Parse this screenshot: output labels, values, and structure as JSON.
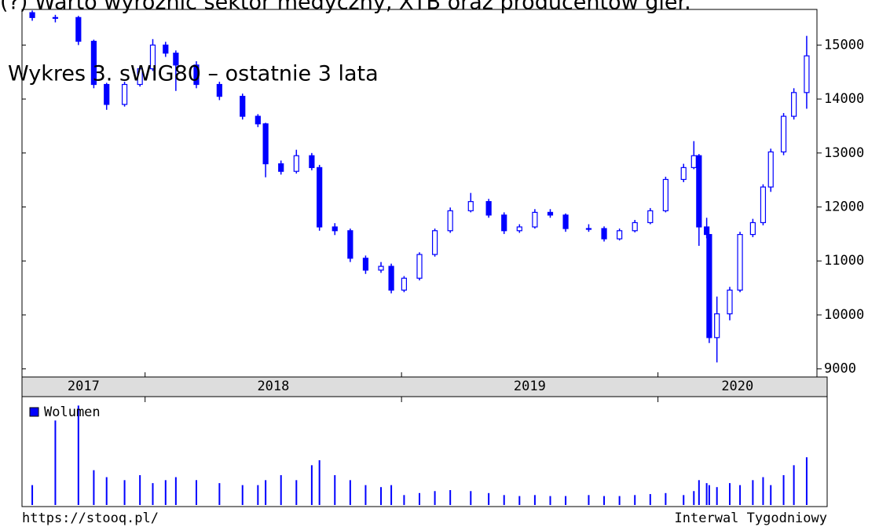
{
  "chart_data": {
    "type": "candlestick",
    "heading": "(?) Warto wyróżnić sektor medyczny, XTB oraz producentów gier.",
    "title": "Wykres 3. sWIG80 – ostatnie 3 lata",
    "color": "#0000ff",
    "x": [
      2017.56,
      2017.65,
      2017.74,
      2017.8,
      2017.85,
      2017.92,
      2017.98,
      2018.03,
      2018.08,
      2018.12,
      2018.2,
      2018.29,
      2018.38,
      2018.44,
      2018.47,
      2018.53,
      2018.59,
      2018.65,
      2018.68,
      2018.74,
      2018.8,
      2018.86,
      2018.92,
      2018.96,
      2019.01,
      2019.07,
      2019.13,
      2019.19,
      2019.27,
      2019.34,
      2019.4,
      2019.46,
      2019.52,
      2019.58,
      2019.64,
      2019.73,
      2019.79,
      2019.85,
      2019.91,
      2019.97,
      2020.03,
      2020.1,
      2020.14,
      2020.16,
      2020.19,
      2020.2,
      2020.23,
      2020.28,
      2020.32,
      2020.37,
      2020.41,
      2020.44,
      2020.49,
      2020.53,
      2020.58
    ],
    "open": [
      15600,
      15510,
      15510,
      15070,
      14270,
      13900,
      14270,
      14560,
      15000,
      14850,
      14630,
      14270,
      14050,
      13680,
      13540,
      12800,
      12660,
      12950,
      12730,
      11630,
      11560,
      11050,
      10830,
      10900,
      10460,
      10680,
      11120,
      11560,
      11930,
      12100,
      11850,
      11560,
      11630,
      11900,
      11850,
      11600,
      11600,
      11410,
      11560,
      11710,
      11930,
      12510,
      12730,
      12950,
      11630,
      11490,
      9580,
      10020,
      10460,
      11490,
      11710,
      12370,
      13020,
      13680,
      14120
    ],
    "high": [
      15640,
      15560,
      15540,
      15100,
      14300,
      14320,
      14620,
      15110,
      15060,
      14900,
      14700,
      14320,
      14100,
      13720,
      13560,
      12860,
      13060,
      13000,
      12780,
      11700,
      11600,
      11100,
      10980,
      10950,
      10720,
      11160,
      11600,
      11990,
      12260,
      12150,
      11900,
      11680,
      11960,
      11960,
      11880,
      11680,
      11640,
      11600,
      11760,
      11980,
      12560,
      12800,
      13220,
      12980,
      11800,
      11490,
      10340,
      10520,
      11540,
      11780,
      12420,
      13080,
      13740,
      14200,
      15170
    ],
    "low": [
      15450,
      15420,
      15000,
      14200,
      13800,
      13860,
      14230,
      14520,
      14780,
      14150,
      14200,
      13980,
      13620,
      13480,
      12550,
      12600,
      12620,
      12680,
      11560,
      11480,
      10980,
      10760,
      10780,
      10400,
      10420,
      10640,
      11080,
      11520,
      11900,
      11800,
      11500,
      11520,
      11600,
      11800,
      11540,
      11540,
      11360,
      11380,
      11530,
      11680,
      11900,
      12460,
      12700,
      11280,
      11420,
      9480,
      9120,
      9900,
      10420,
      11440,
      11660,
      12280,
      12960,
      13620,
      13820
    ],
    "close": [
      15510,
      15510,
      15070,
      14270,
      13900,
      14270,
      14560,
      15000,
      14850,
      14630,
      14270,
      14050,
      13680,
      13540,
      12800,
      12660,
      12950,
      12730,
      11630,
      11560,
      11050,
      10830,
      10900,
      10460,
      10680,
      11120,
      11560,
      11930,
      12100,
      11850,
      11560,
      11630,
      11900,
      11850,
      11600,
      11600,
      11410,
      11560,
      11710,
      11930,
      12510,
      12730,
      12950,
      11630,
      11490,
      9580,
      10020,
      10460,
      11490,
      11710,
      12370,
      13020,
      13680,
      14120,
      14800
    ],
    "ylim": [
      8850,
      15660
    ],
    "yticks": [
      9000,
      10000,
      11000,
      12000,
      13000,
      14000,
      15000
    ],
    "xlim": [
      2017.52,
      2020.62
    ],
    "xticks": [
      2018,
      2019,
      2020
    ],
    "period_labels": [
      "2017",
      "2018",
      "2019",
      "2020"
    ],
    "volume": {
      "name": "Wolumen",
      "ylim": [
        0,
        105
      ],
      "values": [
        20,
        85,
        100,
        35,
        28,
        25,
        30,
        22,
        25,
        28,
        25,
        22,
        20,
        20,
        25,
        30,
        25,
        40,
        45,
        30,
        25,
        20,
        18,
        20,
        10,
        12,
        14,
        15,
        14,
        12,
        10,
        9,
        10,
        9,
        9,
        10,
        9,
        9,
        10,
        11,
        12,
        10,
        14,
        25,
        22,
        20,
        18,
        22,
        20,
        25,
        28,
        20,
        30,
        40,
        48
      ]
    },
    "source": "https://stooq.pl/",
    "interval": "Interwal Tygodniowy"
  }
}
